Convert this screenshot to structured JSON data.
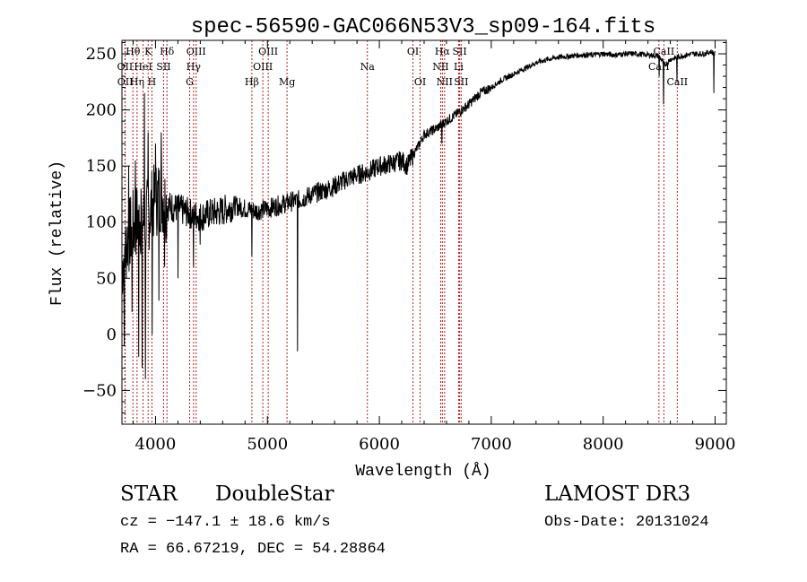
{
  "chart_data": {
    "type": "line",
    "title": "spec-56590-GAC066N53V3_sp09-164.fits",
    "xlabel": "Wavelength (Å)",
    "ylabel": "Flux (relative)",
    "xlim": [
      3700,
      9100
    ],
    "ylim": [
      -80,
      262
    ],
    "x_ticks": [
      4000,
      5000,
      6000,
      7000,
      8000,
      9000
    ],
    "y_ticks": [
      -50,
      0,
      50,
      100,
      150,
      200,
      250
    ],
    "grid": false,
    "line_color": "#000000",
    "marker_color": "#b22222",
    "series": [
      {
        "name": "flux",
        "x": [
          3700,
          3750,
          3800,
          3850,
          3900,
          3950,
          4000,
          4050,
          4100,
          4200,
          4300,
          4400,
          4500,
          4600,
          4700,
          4800,
          4900,
          5000,
          5100,
          5200,
          5300,
          5400,
          5500,
          5600,
          5700,
          5800,
          5900,
          6000,
          6100,
          6200,
          6250,
          6300,
          6350,
          6400,
          6500,
          6600,
          6700,
          6800,
          6900,
          7000,
          7100,
          7200,
          7300,
          7400,
          7500,
          7600,
          7700,
          7800,
          7900,
          8000,
          8100,
          8200,
          8300,
          8400,
          8500,
          8550,
          8600,
          8700,
          8800,
          8900,
          8960,
          9000
        ],
        "y": [
          60,
          85,
          95,
          105,
          100,
          110,
          120,
          125,
          115,
          112,
          108,
          105,
          108,
          110,
          115,
          112,
          110,
          112,
          115,
          118,
          120,
          125,
          128,
          132,
          138,
          142,
          145,
          150,
          152,
          155,
          150,
          160,
          168,
          178,
          183,
          190,
          197,
          205,
          215,
          220,
          227,
          232,
          237,
          242,
          245,
          247,
          248,
          249,
          249,
          250,
          249,
          250,
          250,
          249,
          248,
          240,
          245,
          248,
          250,
          250,
          252,
          250
        ]
      }
    ],
    "spikes": [
      {
        "x": 3720,
        "y": -10
      },
      {
        "x": 3760,
        "y": 150
      },
      {
        "x": 3790,
        "y": 20
      },
      {
        "x": 3820,
        "y": 155
      },
      {
        "x": 3850,
        "y": -20
      },
      {
        "x": 3870,
        "y": 130
      },
      {
        "x": 3880,
        "y": -30
      },
      {
        "x": 3900,
        "y": 215
      },
      {
        "x": 3910,
        "y": -40
      },
      {
        "x": 3935,
        "y": 180
      },
      {
        "x": 3970,
        "y": 0
      },
      {
        "x": 4000,
        "y": 170
      },
      {
        "x": 4030,
        "y": 30
      },
      {
        "x": 4050,
        "y": 180
      },
      {
        "x": 4080,
        "y": 60
      },
      {
        "x": 4200,
        "y": 50
      },
      {
        "x": 4340,
        "y": 60
      },
      {
        "x": 4400,
        "y": 80
      },
      {
        "x": 4860,
        "y": 70
      },
      {
        "x": 5270,
        "y": -15
      },
      {
        "x": 6560,
        "y": 170
      },
      {
        "x": 8500,
        "y": 230
      },
      {
        "x": 8540,
        "y": 205
      },
      {
        "x": 8660,
        "y": 225
      },
      {
        "x": 8990,
        "y": 215
      },
      {
        "x": 9000,
        "y": 50
      },
      {
        "x": 9005,
        "y": 0
      }
    ],
    "line_markers": [
      {
        "name": "Hθ",
        "x": 3798,
        "row": 1
      },
      {
        "name": "K",
        "x": 3934,
        "row": 1
      },
      {
        "name": "Hδ",
        "x": 4102,
        "row": 1
      },
      {
        "name": "OIII",
        "x": 4363,
        "row": 1
      },
      {
        "name": "OIII",
        "x": 5007,
        "row": 1
      },
      {
        "name": "OI",
        "x": 6300,
        "row": 1
      },
      {
        "name": "Hα",
        "x": 6563,
        "row": 1
      },
      {
        "name": "SII",
        "x": 6717,
        "row": 1
      },
      {
        "name": "CaII",
        "x": 8542,
        "row": 1
      },
      {
        "name": "OII",
        "x": 3727,
        "row": 2
      },
      {
        "name": "HeI",
        "x": 3889,
        "row": 2
      },
      {
        "name": "SII",
        "x": 4072,
        "row": 2
      },
      {
        "name": "Hγ",
        "x": 4340,
        "row": 2
      },
      {
        "name": "OIII",
        "x": 4959,
        "row": 2
      },
      {
        "name": "Na",
        "x": 5893,
        "row": 2
      },
      {
        "name": "NII",
        "x": 6548,
        "row": 2
      },
      {
        "name": "Li",
        "x": 6708,
        "row": 2
      },
      {
        "name": "CaII",
        "x": 8498,
        "row": 2
      },
      {
        "name": "OII",
        "x": 3729,
        "row": 3
      },
      {
        "name": "Hη",
        "x": 3835,
        "row": 3
      },
      {
        "name": "H",
        "x": 3968,
        "row": 3
      },
      {
        "name": "G",
        "x": 4305,
        "row": 3
      },
      {
        "name": "Hβ",
        "x": 4861,
        "row": 3
      },
      {
        "name": "Mg",
        "x": 5175,
        "row": 3
      },
      {
        "name": "OI",
        "x": 6364,
        "row": 3
      },
      {
        "name": "NII",
        "x": 6583,
        "row": 3
      },
      {
        "name": "SII",
        "x": 6731,
        "row": 3
      },
      {
        "name": "CaII",
        "x": 8662,
        "row": 3
      }
    ]
  },
  "info": {
    "class": "STAR",
    "subclass": "DoubleStar",
    "survey": "LAMOST DR3",
    "cz": "cz = −147.1 ± 18.6 km/s",
    "obs_date": "Obs-Date: 20131024",
    "coords": "RA =  66.67219, DEC =  54.28864"
  }
}
